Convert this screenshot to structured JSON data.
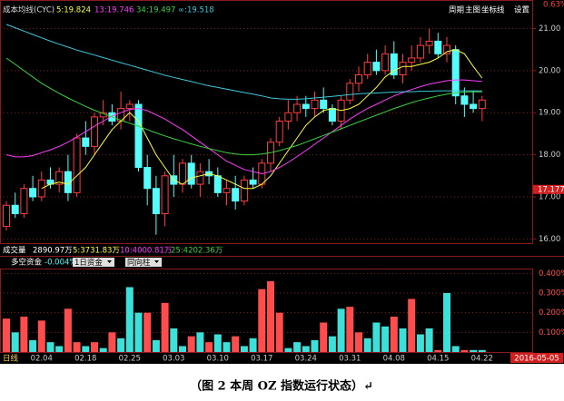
{
  "header": {
    "title": "成本均线(CYC)",
    "change_label": "0.63%",
    "buttons": [
      "周期",
      "主图",
      "坐标线",
      "设置"
    ]
  },
  "chart_data": [
    {
      "type": "candlestick",
      "categories": [
        null,
        null,
        null,
        null,
        "02.04",
        null,
        null,
        null,
        null,
        "02.18",
        null,
        null,
        null,
        null,
        "02.25",
        null,
        null,
        null,
        null,
        "03.03",
        null,
        null,
        null,
        null,
        "03.10",
        null,
        null,
        null,
        null,
        "03.17",
        null,
        null,
        null,
        null,
        "03.24",
        null,
        null,
        null,
        null,
        "03.31",
        null,
        null,
        null,
        null,
        "04.08",
        null,
        null,
        null,
        null,
        "04.15",
        null,
        null,
        null,
        null,
        "04.22"
      ],
      "open": [
        16.3,
        16.8,
        16.6,
        17.2,
        17.0,
        17.4,
        17.3,
        17.6,
        17.1,
        18.4,
        18.2,
        18.9,
        19.0,
        18.8,
        19.1,
        19.2,
        17.7,
        17.2,
        16.6,
        17.5,
        17.3,
        17.8,
        17.3,
        17.6,
        17.5,
        17.1,
        17.2,
        16.9,
        17.4,
        17.3,
        17.8,
        18.3,
        18.8,
        19.0,
        19.2,
        19.1,
        19.3,
        19.1,
        18.8,
        19.3,
        19.7,
        19.9,
        20.2,
        20.0,
        20.4,
        19.9,
        20.2,
        20.3,
        20.6,
        20.7,
        20.4,
        20.5,
        19.4,
        19.2,
        19.1
      ],
      "high": [
        16.9,
        17.1,
        17.3,
        17.5,
        17.6,
        17.7,
        17.7,
        18.0,
        18.5,
        18.8,
        19.0,
        19.3,
        19.2,
        19.5,
        19.3,
        19.3,
        18.0,
        17.5,
        17.6,
        18.0,
        17.9,
        18.0,
        17.8,
        17.9,
        17.7,
        17.4,
        17.5,
        17.5,
        17.7,
        17.9,
        18.4,
        18.9,
        19.3,
        19.4,
        19.4,
        19.5,
        19.6,
        19.2,
        19.4,
        19.8,
        20.1,
        20.4,
        20.5,
        20.6,
        20.7,
        20.4,
        20.6,
        20.8,
        21.0,
        20.9,
        20.8,
        20.6,
        19.6,
        19.5,
        19.4
      ],
      "low": [
        16.2,
        16.5,
        16.5,
        16.9,
        16.9,
        17.2,
        17.1,
        16.9,
        17.0,
        18.0,
        18.0,
        18.7,
        18.7,
        18.6,
        18.8,
        17.6,
        16.8,
        16.1,
        16.3,
        17.0,
        17.1,
        17.2,
        17.0,
        17.3,
        17.0,
        16.8,
        16.7,
        16.8,
        17.2,
        17.2,
        17.6,
        18.2,
        18.6,
        18.8,
        18.9,
        18.9,
        19.0,
        18.7,
        18.6,
        19.2,
        19.5,
        19.8,
        19.9,
        19.9,
        19.8,
        19.7,
        20.0,
        20.2,
        20.4,
        20.3,
        20.2,
        19.2,
        18.9,
        19.0,
        18.8
      ],
      "close": [
        16.8,
        16.6,
        17.2,
        17.0,
        17.4,
        17.3,
        17.6,
        17.1,
        18.4,
        18.2,
        18.9,
        19.0,
        18.8,
        19.1,
        19.2,
        17.7,
        17.2,
        16.6,
        17.5,
        17.3,
        17.8,
        17.3,
        17.6,
        17.5,
        17.1,
        17.2,
        16.9,
        17.4,
        17.3,
        17.8,
        18.3,
        18.8,
        19.0,
        19.2,
        19.1,
        19.3,
        19.1,
        18.8,
        19.3,
        19.7,
        19.9,
        20.2,
        20.0,
        20.4,
        19.9,
        20.2,
        20.3,
        20.6,
        20.7,
        20.4,
        20.6,
        19.4,
        19.2,
        19.1,
        19.3
      ],
      "up_color": "#ff3c3c",
      "down_color": "#54fcfc",
      "series": [
        {
          "name": "5:19.824",
          "color": "#ffff3c",
          "values": [
            null,
            null,
            null,
            null,
            17.2,
            17.3,
            17.35,
            17.3,
            17.5,
            17.7,
            18.0,
            18.3,
            18.6,
            18.8,
            19.0,
            18.8,
            18.4,
            18.0,
            17.7,
            17.4,
            17.3,
            17.45,
            17.5,
            17.55,
            17.5,
            17.4,
            17.3,
            17.2,
            17.2,
            17.3,
            17.5,
            17.8,
            18.1,
            18.4,
            18.7,
            18.9,
            19.05,
            19.1,
            19.05,
            19.1,
            19.2,
            19.4,
            19.6,
            19.85,
            20.0,
            20.1,
            20.1,
            20.15,
            20.2,
            20.3,
            20.45,
            20.5,
            20.4,
            20.1,
            19.824
          ]
        },
        {
          "name": "13:19.746",
          "color": "#ff3cff",
          "values": [
            18.0,
            17.95,
            17.95,
            17.98,
            18.05,
            18.12,
            18.2,
            18.3,
            18.42,
            18.55,
            18.68,
            18.8,
            18.92,
            19.0,
            19.08,
            19.1,
            19.05,
            18.95,
            18.85,
            18.72,
            18.6,
            18.45,
            18.3,
            18.15,
            18.0,
            17.85,
            17.75,
            17.65,
            17.6,
            17.55,
            17.6,
            17.7,
            17.82,
            17.96,
            18.1,
            18.25,
            18.4,
            18.55,
            18.7,
            18.85,
            18.98,
            19.1,
            19.2,
            19.3,
            19.4,
            19.48,
            19.55,
            19.62,
            19.68,
            19.72,
            19.76,
            19.78,
            19.78,
            19.76,
            19.746
          ]
        },
        {
          "name": "34:19.497",
          "color": "#3cd23c",
          "values": [
            20.3,
            20.15,
            20.0,
            19.85,
            19.7,
            19.58,
            19.46,
            19.35,
            19.25,
            19.15,
            19.06,
            18.98,
            18.9,
            18.82,
            18.75,
            18.68,
            18.6,
            18.52,
            18.45,
            18.38,
            18.32,
            18.26,
            18.2,
            18.15,
            18.1,
            18.05,
            18.02,
            18.0,
            18.0,
            18.02,
            18.05,
            18.1,
            18.16,
            18.22,
            18.3,
            18.38,
            18.46,
            18.54,
            18.62,
            18.7,
            18.78,
            18.86,
            18.94,
            19.02,
            19.1,
            19.17,
            19.24,
            19.3,
            19.35,
            19.4,
            19.44,
            19.47,
            19.49,
            19.5,
            19.497
          ]
        },
        {
          "name": "∞:19.518",
          "color": "#3cc8dc",
          "values": [
            21.1,
            21.02,
            20.94,
            20.86,
            20.78,
            20.7,
            20.63,
            20.56,
            20.49,
            20.43,
            20.37,
            20.31,
            20.25,
            20.19,
            20.13,
            20.07,
            20.01,
            19.95,
            19.89,
            19.84,
            19.79,
            19.74,
            19.69,
            19.64,
            19.6,
            19.56,
            19.52,
            19.48,
            19.44,
            19.4,
            19.35,
            19.33,
            19.32,
            19.32,
            19.33,
            19.35,
            19.37,
            19.39,
            19.41,
            19.43,
            19.45,
            19.46,
            19.47,
            19.48,
            19.49,
            19.5,
            19.5,
            19.51,
            19.51,
            19.52,
            19.52,
            19.52,
            19.52,
            19.52,
            19.518
          ]
        }
      ],
      "ylim": [
        15.9,
        21.55
      ],
      "yticks": [
        {
          "value": 16,
          "label": "16.00"
        },
        {
          "value": 17,
          "label": "17.00"
        },
        {
          "value": 18,
          "label": "18.00"
        },
        {
          "value": 19,
          "label": "19.00"
        },
        {
          "value": 20,
          "label": "20.00"
        },
        {
          "value": 21,
          "label": "21.00"
        }
      ],
      "price_marker": 17.177,
      "grid": true
    },
    {
      "type": "bar",
      "title": "多空资金",
      "value_label": "-0.004%",
      "values": [
        0.17,
        0.1,
        0.18,
        0.06,
        0.16,
        0.05,
        0.03,
        0.22,
        0.05,
        0.03,
        0.05,
        0.02,
        0.1,
        0.07,
        0.33,
        0.2,
        0.2,
        0.06,
        0.25,
        0.12,
        0.03,
        0.08,
        0.1,
        0.05,
        0.09,
        0.05,
        0.08,
        0.03,
        0.07,
        0.32,
        0.36,
        0.2,
        0.02,
        0.05,
        0.03,
        0.06,
        0.15,
        0.08,
        0.22,
        0.23,
        0.1,
        0.07,
        0.15,
        0.13,
        0.18,
        0.12,
        0.27,
        0.09,
        0.12,
        0.01,
        0.3,
        0.03,
        0.01,
        0.01,
        0.01
      ],
      "colors": [
        "#ff4d4d",
        "#3de0d8",
        "#ff4d4d",
        "#3de0d8",
        "#ff4d4d",
        "#3de0d8",
        "#3de0d8",
        "#ff4d4d",
        "#ff4d4d",
        "#3de0d8",
        "#ff4d4d",
        "#3de0d8",
        "#ff4d4d",
        "#3de0d8",
        "#3de0d8",
        "#3de0d8",
        "#ff4d4d",
        "#3de0d8",
        "#ff4d4d",
        "#3de0d8",
        "#3de0d8",
        "#ff4d4d",
        "#3de0d8",
        "#ff4d4d",
        "#3de0d8",
        "#3de0d8",
        "#ff4d4d",
        "#3de0d8",
        "#3de0d8",
        "#ff4d4d",
        "#ff4d4d",
        "#ff4d4d",
        "#3de0d8",
        "#3de0d8",
        "#3de0d8",
        "#3de0d8",
        "#ff4d4d",
        "#3de0d8",
        "#3de0d8",
        "#ff4d4d",
        "#ff4d4d",
        "#3de0d8",
        "#3de0d8",
        "#3de0d8",
        "#ff4d4d",
        "#3de0d8",
        "#ff4d4d",
        "#3de0d8",
        "#3de0d8",
        "#ff4d4d",
        "#3de0d8",
        "#3de0d8",
        "#ff4d4d",
        "#3de0d8",
        "#3de0d8"
      ],
      "dropdowns": [
        "1日资金",
        "同向柱"
      ],
      "ylim": [
        0,
        0.42
      ],
      "yticks": [
        {
          "value": 0.1,
          "label": "0.100%"
        },
        {
          "value": 0.2,
          "label": "0.200%"
        },
        {
          "value": 0.3,
          "label": "0.300%"
        },
        {
          "value": 0.4,
          "label": "0.400%"
        }
      ],
      "grid": true
    }
  ],
  "volume_bar": [
    "成交量",
    "2890.97万",
    "5:3731.83万",
    "10:4000.81万",
    "25:4202.36万"
  ],
  "footer": {
    "period": "日线",
    "date": "2016-05-05"
  },
  "caption": "（图 2  本周 OZ 指数运行状态）↵"
}
